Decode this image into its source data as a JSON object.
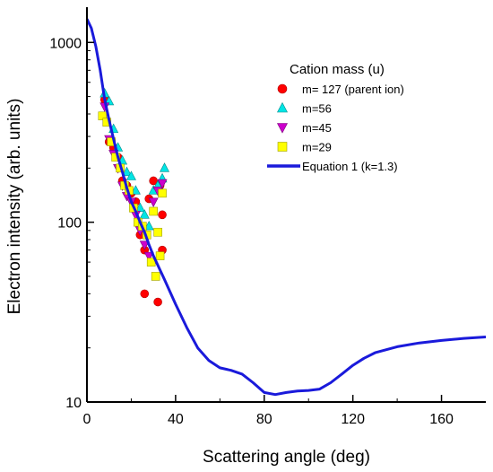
{
  "chart_data": {
    "type": "scatter",
    "title": "",
    "xlabel": "Scattering angle (deg)",
    "ylabel": "Electron intensity (arb. units)",
    "xlim": [
      0,
      180
    ],
    "ylim": [
      10,
      1500
    ],
    "yscale": "log",
    "x_ticks": [
      0,
      40,
      80,
      120,
      160
    ],
    "y_ticks": [
      10,
      100,
      1000
    ],
    "grid": false,
    "legend": {
      "title": "Cation mass (u)",
      "placement": "top-right"
    },
    "series": [
      {
        "name": "m= 127 (parent ion)",
        "marker": "circle",
        "color": "#ff0000",
        "points": [
          [
            8,
            480
          ],
          [
            10,
            280
          ],
          [
            12,
            260
          ],
          [
            14,
            230
          ],
          [
            16,
            170
          ],
          [
            18,
            160
          ],
          [
            20,
            145
          ],
          [
            22,
            130
          ],
          [
            24,
            85
          ],
          [
            26,
            70
          ],
          [
            26,
            40
          ],
          [
            28,
            135
          ],
          [
            30,
            170
          ],
          [
            32,
            36
          ],
          [
            33,
            160
          ],
          [
            34,
            70
          ],
          [
            34,
            110
          ]
        ]
      },
      {
        "name": "m=56",
        "marker": "triangle-up",
        "color": "#00e5e5",
        "points": [
          [
            8,
            520
          ],
          [
            10,
            470
          ],
          [
            12,
            330
          ],
          [
            14,
            260
          ],
          [
            16,
            220
          ],
          [
            18,
            190
          ],
          [
            20,
            180
          ],
          [
            22,
            150
          ],
          [
            24,
            120
          ],
          [
            26,
            110
          ],
          [
            28,
            95
          ],
          [
            30,
            150
          ],
          [
            32,
            160
          ],
          [
            34,
            175
          ],
          [
            35,
            200
          ]
        ]
      },
      {
        "name": "m=45",
        "marker": "triangle-down",
        "color": "#cc00cc",
        "points": [
          [
            8,
            440
          ],
          [
            10,
            290
          ],
          [
            12,
            240
          ],
          [
            14,
            200
          ],
          [
            16,
            160
          ],
          [
            18,
            140
          ],
          [
            20,
            130
          ],
          [
            22,
            110
          ],
          [
            24,
            90
          ],
          [
            26,
            75
          ],
          [
            28,
            65
          ],
          [
            30,
            130
          ],
          [
            32,
            150
          ],
          [
            34,
            165
          ]
        ]
      },
      {
        "name": "m=29",
        "marker": "square",
        "color": "#ffff00",
        "points": [
          [
            7,
            390
          ],
          [
            9,
            360
          ],
          [
            11,
            280
          ],
          [
            13,
            230
          ],
          [
            15,
            200
          ],
          [
            17,
            160
          ],
          [
            19,
            150
          ],
          [
            21,
            120
          ],
          [
            23,
            100
          ],
          [
            25,
            95
          ],
          [
            27,
            85
          ],
          [
            29,
            60
          ],
          [
            31,
            50
          ],
          [
            32,
            88
          ],
          [
            33,
            65
          ],
          [
            34,
            145
          ],
          [
            30,
            115
          ]
        ]
      },
      {
        "name": "Equation 1 (k=1.3)",
        "marker": "line",
        "color": "#1a1adb",
        "points": [
          [
            0,
            1350
          ],
          [
            2,
            1200
          ],
          [
            4,
            950
          ],
          [
            6,
            700
          ],
          [
            8,
            480
          ],
          [
            10,
            370
          ],
          [
            12,
            290
          ],
          [
            14,
            230
          ],
          [
            16,
            190
          ],
          [
            18,
            155
          ],
          [
            20,
            130
          ],
          [
            22,
            115
          ],
          [
            24,
            100
          ],
          [
            26,
            88
          ],
          [
            28,
            75
          ],
          [
            30,
            65
          ],
          [
            35,
            48
          ],
          [
            40,
            35
          ],
          [
            45,
            26
          ],
          [
            50,
            20
          ],
          [
            55,
            17
          ],
          [
            60,
            15.5
          ],
          [
            65,
            15
          ],
          [
            70,
            14.3
          ],
          [
            75,
            12.8
          ],
          [
            80,
            11.3
          ],
          [
            85,
            11
          ],
          [
            90,
            11.3
          ],
          [
            95,
            11.5
          ],
          [
            100,
            11.6
          ],
          [
            105,
            11.8
          ],
          [
            110,
            12.8
          ],
          [
            115,
            14.3
          ],
          [
            120,
            16
          ],
          [
            125,
            17.5
          ],
          [
            130,
            18.8
          ],
          [
            140,
            20.3
          ],
          [
            150,
            21.3
          ],
          [
            160,
            22
          ],
          [
            170,
            22.6
          ],
          [
            180,
            23
          ]
        ]
      }
    ]
  }
}
